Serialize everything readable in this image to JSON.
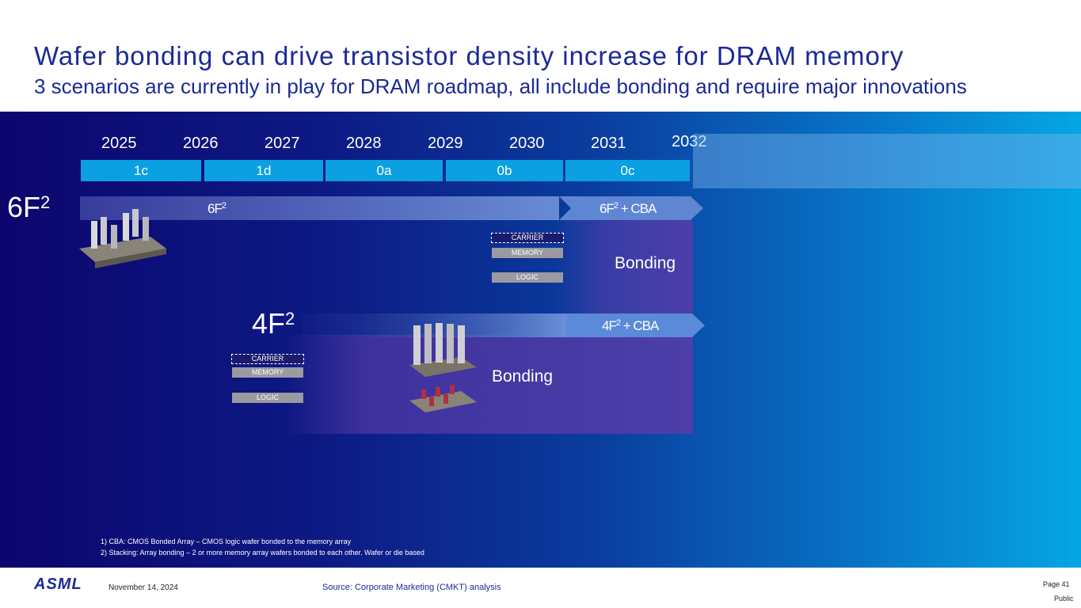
{
  "header": {
    "title": "Wafer bonding can drive transistor density increase for DRAM memory",
    "subtitle": "3 scenarios are currently in play for DRAM roadmap, all include bonding and require major innovations"
  },
  "timeline": {
    "years": [
      "2025",
      "2026",
      "2027",
      "2028",
      "2029",
      "2030",
      "2031",
      "2032"
    ],
    "nodes": [
      "1c",
      "1d",
      "0a",
      "0b",
      "0c"
    ]
  },
  "tracks": {
    "six_f2": {
      "label": "6F",
      "exp": "2",
      "bar_label": "6F",
      "bar_exp": "2",
      "cba_label": "6F",
      "cba_exp": "2",
      "cba_suffix": " + CBA",
      "bonding": "Bonding"
    },
    "four_f2": {
      "label": "4F",
      "exp": "2",
      "cba_label": "4F",
      "cba_exp": "2",
      "cba_suffix": " + CBA",
      "bonding": "Bonding"
    }
  },
  "stack_diagram": {
    "carrier": "CARRIER",
    "memory": "MEMORY",
    "logic": "LOGIC"
  },
  "footnotes": [
    "1) CBA: CMOS Bonded Array – CMOS logic wafer bonded to the memory array",
    "2) Stacking: Array bonding – 2 or more memory array wafers bonded to each other. Wafer or die based"
  ],
  "footer": {
    "logo": "ASML",
    "date": "November 14, 2024",
    "source": "Source: Corporate Marketing (CMKT) analysis",
    "page": "Page 41",
    "classification": "Public"
  },
  "colors": {
    "title": "#1b2a96",
    "node": "#0aa0e2",
    "bonding_region": "#5a3aa8"
  }
}
